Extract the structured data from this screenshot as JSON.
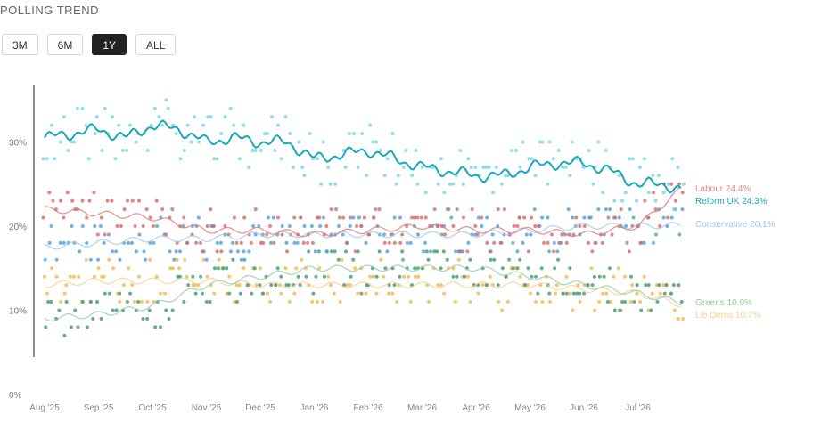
{
  "header": {
    "title": "POLLING TREND"
  },
  "range_selector": {
    "options": [
      {
        "label": "3M",
        "active": false
      },
      {
        "label": "6M",
        "active": false
      },
      {
        "label": "1Y",
        "active": true
      },
      {
        "label": "ALL",
        "active": false
      }
    ]
  },
  "chart_data": {
    "type": "scatter",
    "y_ticks": [
      "0%",
      "10%",
      "20%",
      "30%"
    ],
    "ylim": [
      0,
      37
    ],
    "x_ticks": [
      "Aug '25",
      "Sep '25",
      "Oct '25",
      "Nov '25",
      "Dec '25",
      "Jan '26",
      "Feb '26",
      "Mar '26",
      "Apr '26",
      "May '26",
      "Jun '26",
      "Jul '26"
    ],
    "x_months": [
      "2025-08",
      "2025-09",
      "2025-10",
      "2025-11",
      "2025-12",
      "2026-01",
      "2026-02",
      "2026-03",
      "2026-04",
      "2026-05",
      "2026-06",
      "2026-07"
    ],
    "series": [
      {
        "name": "Reform UK",
        "color": "#17a8be",
        "dot_color": "#7ad5e2",
        "label": "Reform UK 24.3%",
        "final": 24.3,
        "trend": [
          [
            0,
            30.5
          ],
          [
            0.5,
            31
          ],
          [
            1,
            31.5
          ],
          [
            1.5,
            30.5
          ],
          [
            2,
            32
          ],
          [
            2.5,
            31.5
          ],
          [
            3,
            30
          ],
          [
            3.5,
            30.5
          ],
          [
            4,
            30
          ],
          [
            4.5,
            30
          ],
          [
            5,
            28
          ],
          [
            5.5,
            28.5
          ],
          [
            6,
            29
          ],
          [
            6.5,
            28
          ],
          [
            7,
            27
          ],
          [
            7.5,
            26.5
          ],
          [
            8,
            26
          ],
          [
            8.5,
            26
          ],
          [
            9,
            27
          ],
          [
            9.5,
            27.5
          ],
          [
            10,
            27.5
          ],
          [
            10.5,
            26.5
          ],
          [
            11,
            25
          ],
          [
            11.5,
            25
          ],
          [
            11.8,
            24.3
          ]
        ]
      },
      {
        "name": "Labour",
        "color": "#e07070",
        "dot_color": "#d96868",
        "label": "Labour 24.4%",
        "final": 24.4,
        "trend": [
          [
            0,
            22
          ],
          [
            1,
            21.5
          ],
          [
            2,
            21
          ],
          [
            3,
            19.5
          ],
          [
            4,
            19.5
          ],
          [
            5,
            19
          ],
          [
            6,
            19.5
          ],
          [
            7,
            20
          ],
          [
            8,
            19.5
          ],
          [
            9,
            19.5
          ],
          [
            10,
            19
          ],
          [
            11,
            20
          ],
          [
            11.8,
            24.4
          ]
        ]
      },
      {
        "name": "Conservative",
        "color": "#9ec6ea",
        "dot_color": "#4d9fe0",
        "label": "Conservative 20.1%",
        "final": 20.1,
        "trend": [
          [
            0,
            17.5
          ],
          [
            1,
            18
          ],
          [
            2,
            18.5
          ],
          [
            3,
            18.5
          ],
          [
            4,
            19
          ],
          [
            5,
            19
          ],
          [
            6,
            19
          ],
          [
            7,
            19
          ],
          [
            8,
            19
          ],
          [
            9,
            19.5
          ],
          [
            10,
            20
          ],
          [
            11,
            20
          ],
          [
            11.8,
            20.1
          ]
        ]
      },
      {
        "name": "Greens",
        "color": "#8fc9a4",
        "dot_color": "#3f9a72",
        "label": "Greens 10.9%",
        "final": 10.9,
        "trend": [
          [
            0,
            9
          ],
          [
            1,
            9.5
          ],
          [
            2,
            10.5
          ],
          [
            3,
            13
          ],
          [
            4,
            14
          ],
          [
            5,
            15
          ],
          [
            6,
            15
          ],
          [
            7,
            15
          ],
          [
            8,
            15
          ],
          [
            9,
            14
          ],
          [
            10,
            13
          ],
          [
            11,
            12
          ],
          [
            11.8,
            10.9
          ]
        ]
      },
      {
        "name": "Lib Dems",
        "color": "#f5cf8c",
        "dot_color": "#f3b944",
        "label": "Lib Dems 10.7%",
        "final": 10.7,
        "trend": [
          [
            0,
            13
          ],
          [
            1,
            13.5
          ],
          [
            2,
            13.5
          ],
          [
            3,
            13.5
          ],
          [
            4,
            13
          ],
          [
            5,
            13
          ],
          [
            6,
            13
          ],
          [
            7,
            13
          ],
          [
            8,
            13
          ],
          [
            9,
            13
          ],
          [
            10,
            12.5
          ],
          [
            11,
            12
          ],
          [
            11.8,
            10.7
          ]
        ]
      }
    ]
  }
}
